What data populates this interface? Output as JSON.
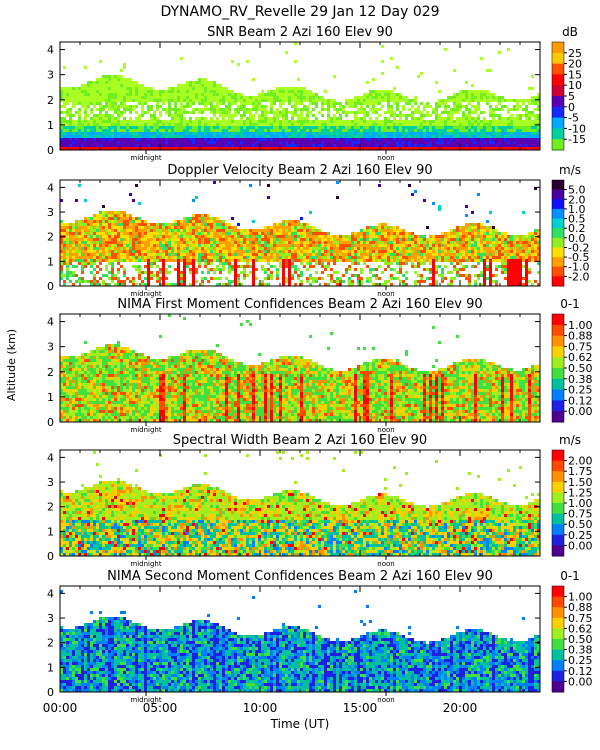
{
  "title": "DYNAMO_RV_Revelle  29 Jan 12 Day 029",
  "xlabel": "Time (UT)",
  "ylabel": "Altitude (km)",
  "x_ticks": [
    "00:00",
    "05:00",
    "10:00",
    "15:00",
    "20:00"
  ],
  "y_ticks": [
    "0",
    "1",
    "2",
    "3",
    "4"
  ],
  "markers": {
    "midnight": "midnight",
    "noon": "noon"
  },
  "chart_data": [
    {
      "type": "heatmap",
      "title": "SNR Beam 2 Azi 160 Elev 90",
      "unit": "dB",
      "xlim": [
        0,
        24
      ],
      "ylim": [
        0,
        4.3
      ],
      "legend": [
        "25",
        "20",
        "15",
        "10",
        "5",
        "0",
        "-5",
        "-10",
        "-15"
      ],
      "colors": [
        "#ff9a00",
        "#ffc800",
        "#ff5000",
        "#ff0000",
        "#cc0033",
        "#5a00b4",
        "#1428ff",
        "#00aaff",
        "#00d0a0",
        "#70ee20",
        "#aaff22"
      ]
    },
    {
      "type": "heatmap",
      "title": "Doppler Velocity Beam 2 Azi 160 Elev 90",
      "unit": "m/s",
      "xlim": [
        0,
        24
      ],
      "ylim": [
        0,
        4.3
      ],
      "legend": [
        "5.0",
        "2.0",
        "1.0",
        "0.5",
        "0.2",
        "0.0",
        "-0.2",
        "-0.5",
        "-1.0",
        "-2.0"
      ],
      "colors": [
        "#2a0030",
        "#4a00a0",
        "#1010ff",
        "#0090ff",
        "#00d0d0",
        "#30e060",
        "#90f020",
        "#ffe000",
        "#ffa000",
        "#ff5000",
        "#ff0000"
      ]
    },
    {
      "type": "heatmap",
      "title": "NIMA First Moment Confidences Beam 2 Azi 160 Elev 90",
      "unit": "0-1",
      "xlim": [
        0,
        24
      ],
      "ylim": [
        0,
        4.3
      ],
      "legend": [
        "1.00",
        "0.88",
        "0.75",
        "0.62",
        "0.50",
        "0.38",
        "0.25",
        "0.12",
        "0.00"
      ],
      "colors": [
        "#ff0000",
        "#ff4a00",
        "#ff9000",
        "#ffd000",
        "#a0ee20",
        "#40e040",
        "#00c0a0",
        "#0080ff",
        "#2020e0",
        "#500090"
      ]
    },
    {
      "type": "heatmap",
      "title": "Spectral Width Beam 2 Azi 160 Elev 90",
      "unit": "m/s",
      "xlim": [
        0,
        24
      ],
      "ylim": [
        0,
        4.3
      ],
      "legend": [
        "2.00",
        "1.75",
        "1.50",
        "1.25",
        "1.00",
        "0.75",
        "0.50",
        "0.25",
        "0.00"
      ],
      "colors": [
        "#ff0000",
        "#ff4a00",
        "#ff9000",
        "#ffd000",
        "#a0ee20",
        "#40e040",
        "#00c0a0",
        "#0080ff",
        "#2020e0",
        "#500090"
      ]
    },
    {
      "type": "heatmap",
      "title": "NIMA Second Moment Confidences Beam 2 Azi 160 Elev 90",
      "unit": "0-1",
      "xlim": [
        0,
        24
      ],
      "ylim": [
        0,
        4.3
      ],
      "legend": [
        "1.00",
        "0.88",
        "0.75",
        "0.62",
        "0.50",
        "0.38",
        "0.25",
        "0.12",
        "0.00"
      ],
      "colors": [
        "#ff0000",
        "#ff4a00",
        "#ff9000",
        "#ffd000",
        "#a0ee20",
        "#40e040",
        "#00c0a0",
        "#0080ff",
        "#2020e0",
        "#500090"
      ]
    }
  ]
}
